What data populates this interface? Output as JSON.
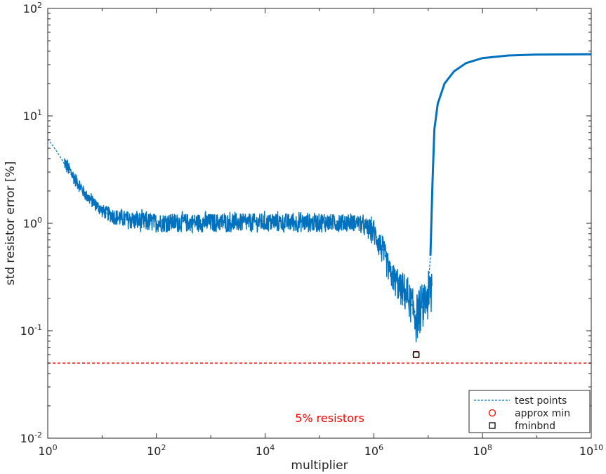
{
  "chart_data": {
    "type": "line",
    "xlabel": "multiplier",
    "ylabel": "std resistor error [%]",
    "xscale": "log",
    "yscale": "log",
    "xlim": [
      1,
      10000000000
    ],
    "ylim": [
      0.01,
      100
    ],
    "grid": false,
    "x_ticks": [
      {
        "value": 1,
        "base": "10",
        "exp": "0"
      },
      {
        "value": 100,
        "base": "10",
        "exp": "2"
      },
      {
        "value": 10000,
        "base": "10",
        "exp": "4"
      },
      {
        "value": 1000000,
        "base": "10",
        "exp": "6"
      },
      {
        "value": 100000000,
        "base": "10",
        "exp": "8"
      },
      {
        "value": 10000000000,
        "base": "10",
        "exp": "10"
      }
    ],
    "y_ticks": [
      {
        "value": 0.01,
        "base": "10",
        "exp": "-2"
      },
      {
        "value": 0.1,
        "base": "10",
        "exp": "-1"
      },
      {
        "value": 1,
        "base": "10",
        "exp": "0"
      },
      {
        "value": 10,
        "base": "10",
        "exp": "1"
      },
      {
        "value": 100,
        "base": "10",
        "exp": "2"
      }
    ],
    "annotation": {
      "text": "5% resistors",
      "x": 30000,
      "y": 0.0155,
      "color": "#ff0000"
    },
    "reference_line": {
      "y": 0.05,
      "color": "#ff0000",
      "style": "dashed"
    },
    "series": [
      {
        "name": "test points",
        "color": "#0072bd",
        "style": "dashed-with-point-markers",
        "x": [
          1,
          1.5,
          2,
          3,
          5,
          8,
          12,
          20,
          40,
          100,
          1000,
          10000,
          100000,
          500000,
          1000000,
          1500000,
          2000000,
          3000000,
          4500000,
          6000000,
          8000000,
          10000000,
          11000000,
          12000000,
          13000000,
          15000000,
          20000000,
          30000000,
          50000000,
          100000000,
          300000000,
          1000000000,
          10000000000
        ],
        "y": [
          6.1,
          4.6,
          3.6,
          2.6,
          1.9,
          1.5,
          1.25,
          1.1,
          1.05,
          1.05,
          1.05,
          1.05,
          1.05,
          1.05,
          0.85,
          0.55,
          0.38,
          0.28,
          0.2,
          0.14,
          0.17,
          0.26,
          0.5,
          2.4,
          7.5,
          13,
          20,
          26,
          31,
          34.5,
          36.5,
          37.2,
          37.5
        ],
        "band_x": [
          2,
          5,
          10,
          20,
          50,
          100,
          1000,
          10000,
          100000,
          500000,
          1000000,
          1500000,
          2000000,
          3000000,
          4500000,
          6000000,
          8000000,
          10000000,
          11000000,
          11700000
        ],
        "band_lo": [
          2.9,
          1.5,
          1.05,
          0.85,
          0.75,
          0.75,
          0.75,
          0.75,
          0.75,
          0.78,
          0.55,
          0.33,
          0.22,
          0.15,
          0.11,
          0.06,
          0.09,
          0.09,
          0.08,
          0.08
        ],
        "band_hi": [
          4.6,
          2.2,
          1.6,
          1.45,
          1.4,
          1.35,
          1.35,
          1.35,
          1.35,
          1.3,
          1.2,
          0.85,
          0.5,
          0.4,
          0.33,
          0.28,
          0.3,
          0.45,
          0.55,
          0.6
        ]
      },
      {
        "name": "approx min",
        "color": "#ff0000",
        "marker": "circle",
        "x": [
          6000000
        ],
        "y": [
          0.06
        ]
      },
      {
        "name": "fminbnd",
        "color": "#000000",
        "marker": "square",
        "x": [
          6000000
        ],
        "y": [
          0.06
        ]
      }
    ],
    "legend": {
      "position": "bottom-right",
      "entries": [
        {
          "label": "test points",
          "color": "#0072bd",
          "symbol": "dashed-line"
        },
        {
          "label": "approx min",
          "color": "#ff0000",
          "symbol": "circle"
        },
        {
          "label": "fminbnd",
          "color": "#000000",
          "symbol": "square"
        }
      ]
    }
  }
}
